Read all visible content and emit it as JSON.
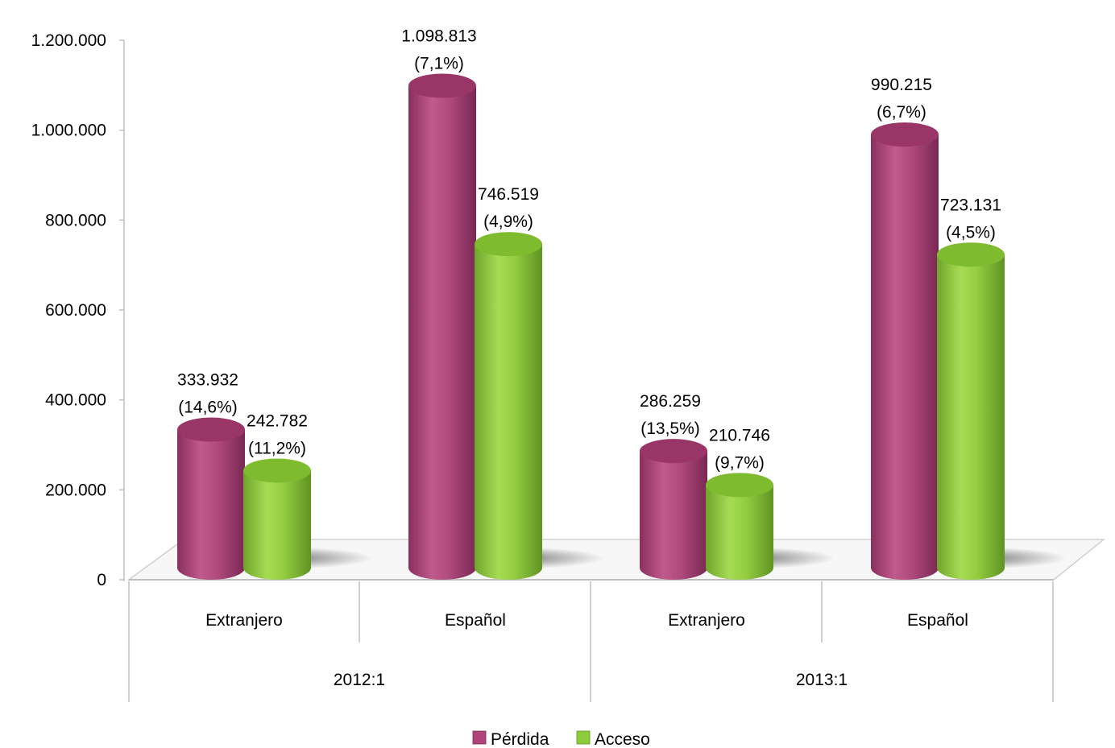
{
  "chart_data": {
    "type": "bar",
    "groups": [
      {
        "label": "2012:1",
        "categories": [
          "Extranjero",
          "Español"
        ]
      },
      {
        "label": "2013:1",
        "categories": [
          "Extranjero",
          "Español"
        ]
      }
    ],
    "categories": [
      "Extranjero",
      "Español",
      "Extranjero",
      "Español"
    ],
    "series": [
      {
        "name": "Pérdida",
        "color": "#b0447a",
        "values": [
          333932,
          1098813,
          286259,
          990215
        ],
        "labels": [
          "333.932",
          "1.098.813",
          "286.259",
          "990.215"
        ],
        "pct": [
          "(14,6%)",
          "(7,1%)",
          "(13,5%)",
          "(6,7%)"
        ]
      },
      {
        "name": "Acceso",
        "color": "#8fcc3c",
        "values": [
          242782,
          746519,
          210746,
          723131
        ],
        "labels": [
          "242.782",
          "746.519",
          "210.746",
          "723.131"
        ],
        "pct": [
          "(11,2%)",
          "(4,9%)",
          "(9,7%)",
          "(4,5%)"
        ]
      }
    ],
    "yticks": [
      0,
      200000,
      400000,
      600000,
      800000,
      1000000,
      1200000
    ],
    "ytick_labels": [
      "0",
      "200.000",
      "400.000",
      "600.000",
      "800.000",
      "1.000.000",
      "1.200.000"
    ],
    "ylim": [
      0,
      1200000
    ],
    "legend_position": "bottom",
    "bar_shape": "cylinder"
  }
}
